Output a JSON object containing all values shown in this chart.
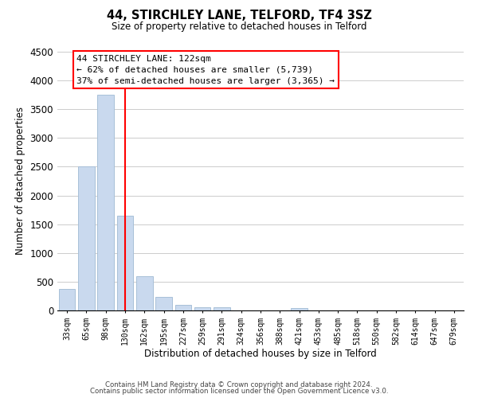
{
  "title": "44, STIRCHLEY LANE, TELFORD, TF4 3SZ",
  "subtitle": "Size of property relative to detached houses in Telford",
  "xlabel": "Distribution of detached houses by size in Telford",
  "ylabel": "Number of detached properties",
  "bar_labels": [
    "33sqm",
    "65sqm",
    "98sqm",
    "130sqm",
    "162sqm",
    "195sqm",
    "227sqm",
    "259sqm",
    "291sqm",
    "324sqm",
    "356sqm",
    "388sqm",
    "421sqm",
    "453sqm",
    "485sqm",
    "518sqm",
    "550sqm",
    "582sqm",
    "614sqm",
    "647sqm",
    "679sqm"
  ],
  "bar_values": [
    375,
    2500,
    3750,
    1650,
    600,
    240,
    100,
    60,
    55,
    0,
    0,
    0,
    40,
    0,
    0,
    0,
    0,
    0,
    0,
    0,
    0
  ],
  "bar_color": "#c9d9ee",
  "bar_edge_color": "#a8c0d8",
  "vline_x": 3,
  "vline_color": "red",
  "ylim": [
    0,
    4500
  ],
  "yticks": [
    0,
    500,
    1000,
    1500,
    2000,
    2500,
    3000,
    3500,
    4000,
    4500
  ],
  "annotation_title": "44 STIRCHLEY LANE: 122sqm",
  "annotation_line1": "← 62% of detached houses are smaller (5,739)",
  "annotation_line2": "37% of semi-detached houses are larger (3,365) →",
  "footer1": "Contains HM Land Registry data © Crown copyright and database right 2024.",
  "footer2": "Contains public sector information licensed under the Open Government Licence v3.0.",
  "background_color": "#ffffff",
  "grid_color": "#cccccc"
}
